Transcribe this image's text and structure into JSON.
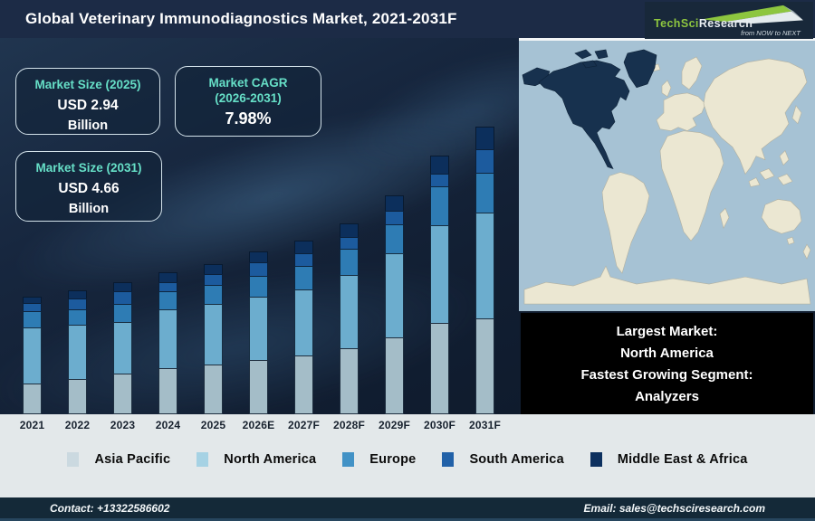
{
  "header": {
    "title": "Global Veterinary Immunodiagnostics Market, 2021-2031F",
    "logo": {
      "brand_green": "TechSci",
      "brand_white": "Research",
      "tagline": "from NOW to NEXT"
    }
  },
  "callouts": {
    "size2025": {
      "title": "Market Size (2025)",
      "value": "USD 2.94",
      "unit": "Billion"
    },
    "cagr": {
      "title_line1": "Market CAGR",
      "title_line2": "(2026-2031)",
      "value": "7.98%"
    },
    "size2031": {
      "title": "Market Size (2031)",
      "value": "USD 4.66",
      "unit": "Billion"
    }
  },
  "chart_data": {
    "type": "bar",
    "stacked": true,
    "title": "Global Veterinary Immunodiagnostics Market, 2021-2031F",
    "categories": [
      "2021",
      "2022",
      "2023",
      "2024",
      "2025",
      "2026E",
      "2027F",
      "2028F",
      "2029F",
      "2030F",
      "2031F"
    ],
    "value_axis": "none shown (illustrative stacked bars, no y-axis); values below are drawn segment heights in px",
    "series": [
      {
        "name": "Asia Pacific",
        "color": "#a4bdc8",
        "values": [
          34,
          39,
          45,
          51,
          55,
          60,
          65,
          73,
          85,
          101,
          106
        ]
      },
      {
        "name": "North America",
        "color": "#6cadce",
        "values": [
          63,
          61,
          58,
          66,
          68,
          71,
          74,
          82,
          94,
          109,
          118
        ]
      },
      {
        "name": "Europe",
        "color": "#2e7cb4",
        "values": [
          19,
          18,
          21,
          21,
          22,
          24,
          27,
          30,
          33,
          44,
          45
        ]
      },
      {
        "name": "South America",
        "color": "#1c5b9e",
        "values": [
          10,
          13,
          15,
          11,
          13,
          16,
          15,
          14,
          16,
          15,
          27
        ]
      },
      {
        "name": "Middle East & Africa",
        "color": "#0c2f5c",
        "values": [
          8,
          10,
          11,
          12,
          12,
          13,
          15,
          16,
          18,
          21,
          26
        ]
      }
    ],
    "annotations": {
      "market_size_2025_usd_billion": 2.94,
      "market_size_2031_usd_billion": 4.66,
      "cagr_2026_2031_percent": 7.98
    },
    "legend_position": "bottom"
  },
  "legend": [
    {
      "label": "Asia Pacific",
      "swatch": "#cbd9e0"
    },
    {
      "label": "North America",
      "swatch": "#a6d2e4"
    },
    {
      "label": "Europe",
      "swatch": "#4292c6"
    },
    {
      "label": "South America",
      "swatch": "#2161a8"
    },
    {
      "label": "Middle East & Africa",
      "swatch": "#0d305f"
    }
  ],
  "map_panel": {
    "highlighted_region": "North America",
    "lines": [
      "Largest Market:",
      "North America",
      "Fastest Growing Segment:",
      "Analyzers"
    ]
  },
  "footer": {
    "contact": "Contact: +13322586602",
    "email": "Email: sales@techsciresearch.com"
  },
  "colors": {
    "title_bar": "#1c2b46",
    "footer_bar": "#142938",
    "chart_bg_dark": "#121f33",
    "bottom_strip": "#e3e8ea",
    "teal_heading": "#66dfc7",
    "callout_border": "#d3e2ea",
    "brand_green": "#8dc63f",
    "map_ocean": "#a6c2d4",
    "map_land": "#ebe7d2",
    "map_highlight": "#17314e",
    "black_box": "#000000"
  }
}
